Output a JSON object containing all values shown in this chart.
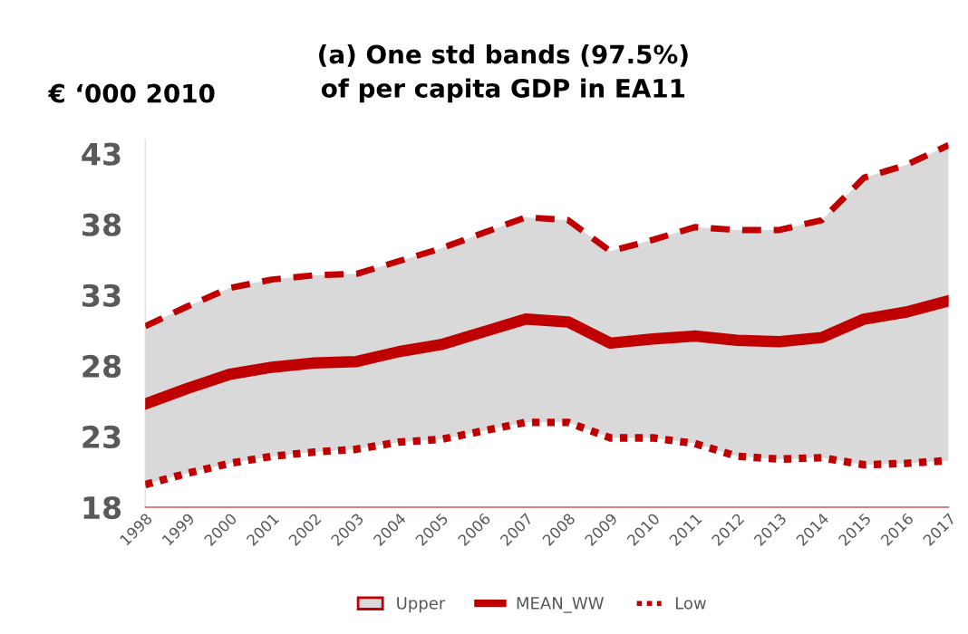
{
  "chart_data": {
    "type": "line",
    "title": "(a) One std bands (97.5%)\nof per capita GDP in EA11",
    "ylabel": "€ ‘000 2010",
    "categories": [
      "1998",
      "1999",
      "2000",
      "2001",
      "2002",
      "2003",
      "2004",
      "2005",
      "2006",
      "2007",
      "2008",
      "2009",
      "2010",
      "2011",
      "2012",
      "2013",
      "2014",
      "2015",
      "2016",
      "2017"
    ],
    "series": [
      {
        "name": "Upper",
        "type": "area",
        "color": "#d9d9d9",
        "line_style": "dashed",
        "values": [
          30.8,
          32.2,
          33.5,
          34.1,
          34.4,
          34.5,
          35.4,
          36.3,
          37.4,
          38.5,
          38.3,
          36.1,
          36.9,
          37.8,
          37.6,
          37.6,
          38.3,
          41.3,
          42.2,
          43.6
        ]
      },
      {
        "name": "MEAN_WW",
        "color": "#c00000",
        "line_style": "solid",
        "values": [
          25.3,
          26.4,
          27.4,
          27.9,
          28.2,
          28.3,
          29.0,
          29.5,
          30.4,
          31.3,
          31.1,
          29.6,
          29.9,
          30.1,
          29.8,
          29.7,
          30.0,
          31.3,
          31.8,
          32.6
        ]
      },
      {
        "name": "Low",
        "color": "#c00000",
        "line_style": "dotted",
        "values": [
          19.6,
          20.4,
          21.1,
          21.6,
          21.9,
          22.1,
          22.6,
          22.8,
          23.4,
          24.0,
          24.0,
          22.9,
          22.9,
          22.5,
          21.6,
          21.4,
          21.5,
          21.0,
          21.1,
          21.3
        ]
      }
    ],
    "ylim": [
      18,
      44
    ],
    "yticks": [
      18,
      23,
      28,
      33,
      38,
      43
    ],
    "grid": false,
    "legend": "bottom"
  }
}
